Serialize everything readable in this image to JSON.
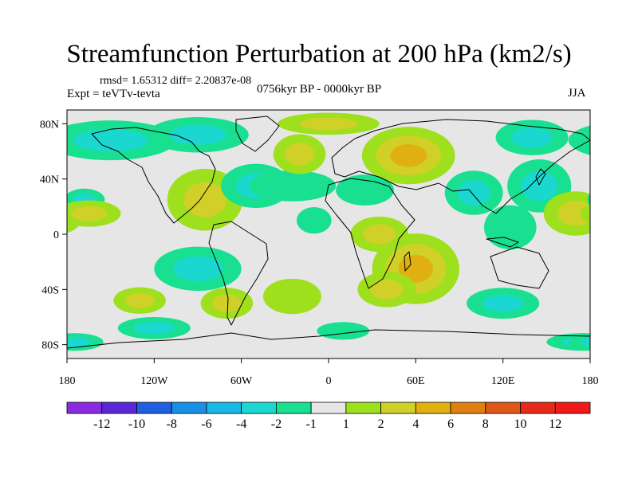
{
  "chart_data": {
    "type": "heatmap",
    "title": "Streamfunction Perturbation at 200 hPa (km2/s)",
    "stats": "rmsd= 1.65312 diff= 2.20837e-08",
    "experiment": "Expt = teVTv-tevta",
    "period": "0756kyr BP - 0000kyr BP",
    "season": "JJA",
    "x_ticks": [
      "180",
      "120W",
      "60W",
      "0",
      "60E",
      "120E",
      "180"
    ],
    "y_ticks": [
      "80N",
      "40N",
      "0",
      "40S",
      "80S"
    ],
    "xlim": [
      -180,
      180
    ],
    "ylim": [
      -90,
      90
    ],
    "colorbar": {
      "labels": [
        "-12",
        "-10",
        "-8",
        "-6",
        "-4",
        "-2",
        "-1",
        "1",
        "2",
        "4",
        "6",
        "8",
        "10",
        "12"
      ],
      "colors": [
        "#8a2be2",
        "#5a28d8",
        "#1f5fe0",
        "#1890e8",
        "#18b8e8",
        "#1ad8d0",
        "#18e090",
        "#e6e6e6",
        "#9ee01e",
        "#d0d028",
        "#e0b010",
        "#e08010",
        "#e05818",
        "#e82818",
        "#f01818"
      ]
    },
    "anomalies": [
      {
        "lon": -150,
        "lat": 68,
        "value": -3,
        "sx": 45,
        "sy": 9
      },
      {
        "lon": -90,
        "lat": 72,
        "value": -2,
        "sx": 35,
        "sy": 8
      },
      {
        "lon": -85,
        "lat": 25,
        "value": 3,
        "sx": 26,
        "sy": 14
      },
      {
        "lon": -50,
        "lat": 35,
        "value": -2,
        "sx": 24,
        "sy": 10
      },
      {
        "lon": -25,
        "lat": 35,
        "value": -1,
        "sx": 30,
        "sy": 7
      },
      {
        "lon": -20,
        "lat": 58,
        "value": 2,
        "sx": 18,
        "sy": 9
      },
      {
        "lon": 55,
        "lat": 57,
        "value": 5,
        "sx": 32,
        "sy": 13
      },
      {
        "lon": 0,
        "lat": 80,
        "value": 2,
        "sx": 35,
        "sy": 5
      },
      {
        "lon": 25,
        "lat": 32,
        "value": -1,
        "sx": 20,
        "sy": 7
      },
      {
        "lon": 100,
        "lat": 30,
        "value": -2,
        "sx": 20,
        "sy": 10
      },
      {
        "lon": 145,
        "lat": 35,
        "value": -2,
        "sx": 22,
        "sy": 12
      },
      {
        "lon": 140,
        "lat": 70,
        "value": -2,
        "sx": 25,
        "sy": 8
      },
      {
        "lon": 170,
        "lat": 15,
        "value": 2,
        "sx": 22,
        "sy": 10
      },
      {
        "lon": 125,
        "lat": 5,
        "value": -1,
        "sx": 18,
        "sy": 10
      },
      {
        "lon": -168,
        "lat": 25,
        "value": -2,
        "sx": 14,
        "sy": 5
      },
      {
        "lon": -165,
        "lat": 15,
        "value": 2,
        "sx": 22,
        "sy": 6
      },
      {
        "lon": -90,
        "lat": -25,
        "value": -3,
        "sx": 30,
        "sy": 10
      },
      {
        "lon": -130,
        "lat": -48,
        "value": 2,
        "sx": 18,
        "sy": 6
      },
      {
        "lon": -70,
        "lat": -50,
        "value": 3,
        "sx": 18,
        "sy": 7
      },
      {
        "lon": -25,
        "lat": -45,
        "value": 1,
        "sx": 20,
        "sy": 8
      },
      {
        "lon": 60,
        "lat": -25,
        "value": 4,
        "sx": 30,
        "sy": 16
      },
      {
        "lon": 40,
        "lat": -40,
        "value": 2,
        "sx": 20,
        "sy": 8
      },
      {
        "lon": 120,
        "lat": -50,
        "value": -2,
        "sx": 25,
        "sy": 7
      },
      {
        "lon": -120,
        "lat": -68,
        "value": -2,
        "sx": 25,
        "sy": 5
      },
      {
        "lon": 10,
        "lat": -70,
        "value": -1,
        "sx": 18,
        "sy": 4
      },
      {
        "lon": 175,
        "lat": -78,
        "value": -2,
        "sx": 25,
        "sy": 4
      },
      {
        "lon": -175,
        "lat": -78,
        "value": -2,
        "sx": 20,
        "sy": 4
      },
      {
        "lon": 35,
        "lat": 0,
        "value": 2,
        "sx": 20,
        "sy": 8
      },
      {
        "lon": -10,
        "lat": 10,
        "value": -1,
        "sx": 12,
        "sy": 6
      }
    ]
  }
}
